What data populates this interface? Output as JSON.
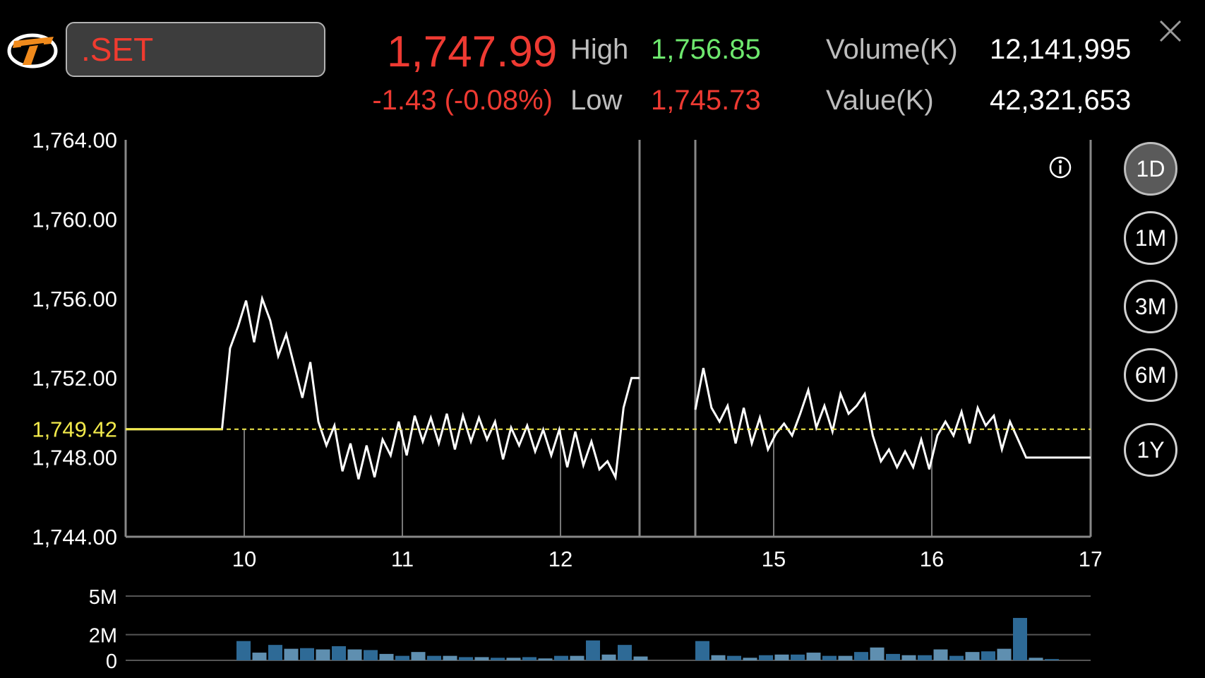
{
  "header": {
    "symbol": ".SET",
    "price": "1,747.99",
    "change": "-1.43 (-0.08%)",
    "high_label": "High",
    "high_value": "1,756.85",
    "low_label": "Low",
    "low_value": "1,745.73",
    "volume_label": "Volume(K)",
    "volume_value": "12,141,995",
    "value_label": "Value(K)",
    "value_value": "42,321,653"
  },
  "range_buttons": [
    {
      "label": "1D",
      "active": true
    },
    {
      "label": "1M",
      "active": false
    },
    {
      "label": "3M",
      "active": false
    },
    {
      "label": "6M",
      "active": false
    },
    {
      "label": "1Y",
      "active": false
    }
  ],
  "colors": {
    "up": "#6ee86e",
    "down": "#ee3a32",
    "line": "#ffffff",
    "prev_close": "#f2ea4b",
    "volume_bar": "#2e6a96",
    "volume_bar_light": "#5f8fb0"
  },
  "icons": [
    "logo-icon",
    "close-icon",
    "info-icon"
  ],
  "chart_data": [
    {
      "type": "line",
      "title": "",
      "y_ticks": [
        "1,764.00",
        "1,760.00",
        "1,756.00",
        "1,752.00",
        "1,748.00",
        "1,744.00"
      ],
      "ylim": [
        1744,
        1764
      ],
      "x_ticks": [
        "10",
        "11",
        "12",
        "15",
        "16",
        "17"
      ],
      "prev_close": 1749.42,
      "prev_close_label": "1,749.42",
      "grid": false,
      "sessions": [
        {
          "name": "day1",
          "values": [
            1749.42,
            1749.42,
            1749.42,
            1749.42,
            1749.42,
            1749.42,
            1749.42,
            1749.42,
            1749.42,
            1749.42,
            1749.42,
            1749.42,
            1749.42,
            1753.5,
            1754.6,
            1755.9,
            1753.8,
            1756.0,
            1754.9,
            1753.1,
            1754.2,
            1752.6,
            1751.0,
            1752.8,
            1749.8,
            1748.6,
            1749.6,
            1747.3,
            1748.7,
            1746.9,
            1748.6,
            1747.0,
            1748.9,
            1748.1,
            1749.8,
            1748.1,
            1750.1,
            1748.8,
            1750.0,
            1748.7,
            1750.2,
            1748.4,
            1750.1,
            1748.8,
            1750.0,
            1748.9,
            1749.8,
            1747.9,
            1749.5,
            1748.6,
            1749.6,
            1748.3,
            1749.4,
            1748.1,
            1749.4,
            1747.5,
            1749.3,
            1747.6,
            1748.8,
            1747.4,
            1747.8,
            1747.0,
            1750.5,
            1752.0,
            1752.0
          ]
        },
        {
          "name": "day2",
          "values": [
            1750.4,
            1752.5,
            1750.5,
            1749.8,
            1750.6,
            1748.7,
            1750.5,
            1748.7,
            1750.0,
            1748.4,
            1749.2,
            1749.7,
            1749.1,
            1750.2,
            1751.4,
            1749.5,
            1750.6,
            1749.3,
            1751.2,
            1750.2,
            1750.6,
            1751.2,
            1749.1,
            1747.8,
            1748.4,
            1747.5,
            1748.3,
            1747.5,
            1748.9,
            1747.4,
            1749.1,
            1749.8,
            1749.1,
            1750.3,
            1748.7,
            1750.5,
            1749.6,
            1750.1,
            1748.4,
            1749.8,
            1748.9,
            1747.99,
            1747.99,
            1747.99,
            1747.99,
            1747.99,
            1747.99,
            1747.99,
            1747.99,
            1747.99
          ]
        }
      ]
    },
    {
      "type": "bar",
      "title": "",
      "y_ticks": [
        "5M",
        "2M",
        "0"
      ],
      "ylim": [
        0,
        5
      ],
      "unit": "M shares",
      "sessions": [
        {
          "name": "day1",
          "values": [
            1.5,
            0.6,
            1.2,
            0.9,
            0.95,
            0.85,
            1.1,
            0.85,
            0.8,
            0.5,
            0.35,
            0.65,
            0.35,
            0.35,
            0.25,
            0.25,
            0.2,
            0.2,
            0.25,
            0.15,
            0.35,
            0.35,
            1.55,
            0.45,
            1.2,
            0.3
          ]
        },
        {
          "name": "day2",
          "values": [
            1.5,
            0.4,
            0.35,
            0.2,
            0.4,
            0.45,
            0.45,
            0.6,
            0.35,
            0.35,
            0.65,
            1.0,
            0.5,
            0.4,
            0.4,
            0.85,
            0.35,
            0.65,
            0.7,
            0.9,
            3.3,
            0.2,
            0.1
          ]
        }
      ]
    }
  ]
}
